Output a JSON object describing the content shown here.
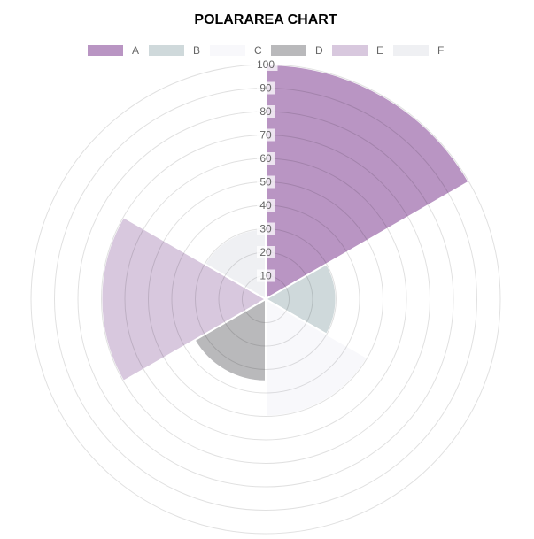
{
  "chart_data": {
    "type": "polarArea",
    "title": "POLARAREA CHART",
    "categories": [
      "A",
      "B",
      "C",
      "D",
      "E",
      "F"
    ],
    "values": [
      100,
      30,
      50,
      35,
      70,
      30
    ],
    "colors": [
      "#b995c3",
      "#cfd9db",
      "#f8f8fb",
      "#b9b9bb",
      "#d8c8de",
      "#eff0f3"
    ],
    "r_range": [
      0,
      100
    ],
    "r_ticks": [
      10,
      20,
      30,
      40,
      50,
      60,
      70,
      80,
      90,
      100
    ],
    "r_tick_labels": [
      "10",
      "20",
      "30",
      "40",
      "50",
      "60",
      "70",
      "80",
      "90",
      "100"
    ],
    "grid": true,
    "legend_position": "top"
  }
}
